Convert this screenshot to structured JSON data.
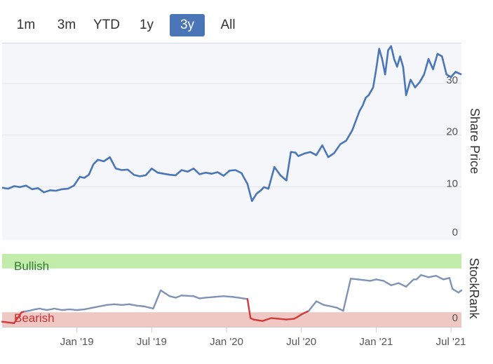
{
  "range_selector": {
    "buttons": [
      "1m",
      "3m",
      "YTD",
      "1y",
      "3y",
      "All"
    ],
    "active": "3y"
  },
  "chart_data": [
    {
      "type": "line",
      "title": "",
      "ylabel": "Share Price",
      "ylim": [
        0,
        38
      ],
      "yticks": [
        0,
        10,
        20,
        30
      ],
      "yticklabels": [
        "0",
        "10",
        "20",
        "30"
      ],
      "x_range_years": [
        2018.5,
        2021.57
      ],
      "color": "#4a76b8",
      "series": [
        {
          "name": "Share Price",
          "x": [
            2018.5,
            2018.54,
            2018.58,
            2018.62,
            2018.66,
            2018.7,
            2018.74,
            2018.78,
            2018.82,
            2018.86,
            2018.9,
            2018.94,
            2018.98,
            2019.02,
            2019.05,
            2019.08,
            2019.11,
            2019.14,
            2019.18,
            2019.22,
            2019.26,
            2019.3,
            2019.34,
            2019.38,
            2019.42,
            2019.46,
            2019.5,
            2019.54,
            2019.58,
            2019.62,
            2019.66,
            2019.7,
            2019.74,
            2019.78,
            2019.82,
            2019.86,
            2019.9,
            2019.94,
            2019.98,
            2020.02,
            2020.06,
            2020.1,
            2020.14,
            2020.17,
            2020.2,
            2020.23,
            2020.25,
            2020.28,
            2020.32,
            2020.36,
            2020.4,
            2020.43,
            2020.46,
            2020.48,
            2020.52,
            2020.56,
            2020.6,
            2020.64,
            2020.68,
            2020.72,
            2020.76,
            2020.8,
            2020.84,
            2020.87,
            2020.89,
            2020.91,
            2020.93,
            2020.95,
            2020.98,
            2021.0,
            2021.02,
            2021.04,
            2021.06,
            2021.08,
            2021.1,
            2021.12,
            2021.14,
            2021.16,
            2021.18,
            2021.2,
            2021.23,
            2021.26,
            2021.29,
            2021.32,
            2021.35,
            2021.38,
            2021.41,
            2021.44,
            2021.47,
            2021.5,
            2021.53,
            2021.57
          ],
          "values": [
            10.1,
            9.9,
            10.4,
            10.2,
            10.5,
            9.8,
            10.0,
            9.2,
            9.6,
            9.5,
            9.8,
            9.9,
            10.5,
            12.2,
            12.0,
            12.6,
            14.6,
            15.5,
            15.2,
            16.0,
            13.8,
            13.5,
            13.6,
            12.6,
            12.3,
            12.5,
            13.8,
            13.0,
            12.8,
            12.6,
            12.5,
            13.5,
            13.2,
            13.8,
            12.7,
            13.0,
            12.8,
            13.1,
            12.4,
            13.4,
            13.5,
            12.9,
            10.8,
            7.5,
            8.9,
            9.6,
            10.2,
            9.9,
            14.1,
            12.5,
            11.5,
            17.0,
            16.9,
            16.2,
            16.7,
            17.0,
            16.4,
            18.3,
            16.0,
            16.8,
            18.5,
            19.2,
            21.2,
            23.5,
            25.0,
            26.0,
            27.5,
            28.0,
            29.5,
            33.0,
            37.0,
            35.0,
            32.0,
            36.7,
            37.5,
            35.0,
            33.5,
            35.5,
            33.5,
            28.0,
            31.0,
            29.5,
            30.5,
            32.0,
            35.0,
            33.0,
            36.0,
            35.5,
            32.0,
            31.5,
            32.5,
            32.0
          ]
        }
      ]
    },
    {
      "type": "line",
      "title": "",
      "ylabel": "StockRank",
      "ylim": [
        0,
        100
      ],
      "yticks": [
        0
      ],
      "yticklabels": [
        "0"
      ],
      "bands": [
        {
          "name": "Bullish",
          "from": 80,
          "to": 100,
          "color": "#c2ecaa",
          "text_color": "#2e7d32"
        },
        {
          "name": "Bearish",
          "from": 0,
          "to": 20,
          "color": "#efc8c4",
          "text_color": "#d32f2f"
        }
      ],
      "series": [
        {
          "name": "StockRank",
          "colors": {
            "bearish": "#d13a3a",
            "neutral": "#7f93b5",
            "bullish": "#3f9e3a"
          },
          "x": [
            2018.5,
            2018.58,
            2018.63,
            2018.65,
            2018.68,
            2018.72,
            2018.75,
            2018.8,
            2018.85,
            2018.9,
            2018.95,
            2019.0,
            2019.05,
            2019.1,
            2019.15,
            2019.2,
            2019.25,
            2019.3,
            2019.35,
            2019.4,
            2019.45,
            2019.49,
            2019.51,
            2019.56,
            2019.62,
            2019.66,
            2019.7,
            2019.78,
            2019.82,
            2019.86,
            2019.92,
            2019.98,
            2020.04,
            2020.08,
            2020.14,
            2020.16,
            2020.18,
            2020.24,
            2020.3,
            2020.35,
            2020.4,
            2020.45,
            2020.47,
            2020.5,
            2020.55,
            2020.6,
            2020.65,
            2020.7,
            2020.74,
            2020.76,
            2020.78,
            2020.83,
            2020.88,
            2020.92,
            2020.96,
            2021.0,
            2021.05,
            2021.1,
            2021.15,
            2021.2,
            2021.25,
            2021.27,
            2021.3,
            2021.35,
            2021.4,
            2021.45,
            2021.49,
            2021.51,
            2021.55,
            2021.57
          ],
          "values": [
            7,
            5,
            20,
            21,
            22,
            24,
            25,
            23,
            25,
            23,
            24,
            23,
            24,
            26,
            28,
            30,
            31,
            30,
            31,
            29,
            28,
            26,
            25,
            50,
            42,
            40,
            43,
            42,
            39,
            40,
            41,
            42,
            41,
            40,
            38,
            12,
            10,
            8,
            12,
            11,
            10,
            11,
            13,
            17,
            22,
            35,
            30,
            28,
            26,
            24,
            22,
            66,
            65,
            64,
            63,
            65,
            63,
            57,
            60,
            55,
            65,
            65,
            71,
            68,
            70,
            65,
            67,
            52,
            47,
            50
          ]
        }
      ],
      "x_ticks": [
        "Jan '19",
        "Jul '19",
        "Jan '20",
        "Jul '20",
        "Jan '21",
        "Jul '21"
      ],
      "x_tick_values": [
        2019.0,
        2019.5,
        2020.0,
        2020.5,
        2021.0,
        2021.5
      ]
    }
  ]
}
